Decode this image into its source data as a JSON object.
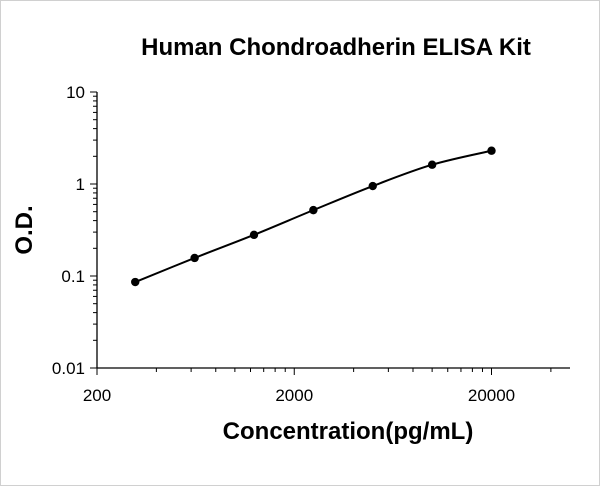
{
  "chart_data": {
    "type": "scatter",
    "title": "Human Chondroadherin ELISA Kit",
    "xlabel": "Concentration(pg/mL)",
    "ylabel": "O.D.",
    "x_scale": "log",
    "y_scale": "log",
    "xlim": [
      200,
      50000
    ],
    "ylim": [
      0.01,
      10
    ],
    "x_ticks": [
      {
        "value": 200,
        "label": "200"
      },
      {
        "value": 2000,
        "label": "2000"
      },
      {
        "value": 20000,
        "label": "20000"
      }
    ],
    "y_ticks": [
      {
        "value": 0.01,
        "label": "0.01"
      },
      {
        "value": 0.1,
        "label": "0.1"
      },
      {
        "value": 1,
        "label": "1"
      },
      {
        "value": 10,
        "label": "10"
      }
    ],
    "grid": false,
    "legend": "none",
    "series": [
      {
        "points": [
          {
            "x": 312.5,
            "y": 0.086
          },
          {
            "x": 625,
            "y": 0.157
          },
          {
            "x": 1250,
            "y": 0.28
          },
          {
            "x": 2500,
            "y": 0.52
          },
          {
            "x": 5000,
            "y": 0.95
          },
          {
            "x": 10000,
            "y": 1.62
          },
          {
            "x": 20000,
            "y": 2.3
          }
        ],
        "color": "#000000"
      }
    ]
  }
}
